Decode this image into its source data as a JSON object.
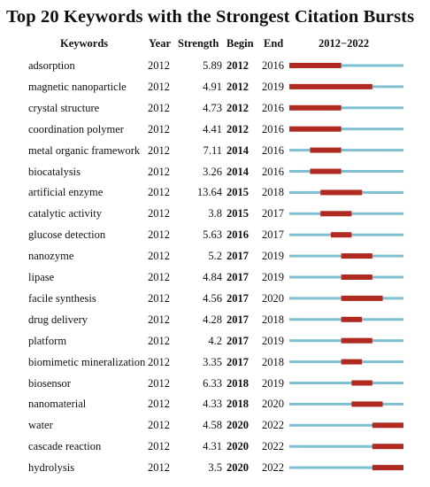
{
  "title": "Top 20 Keywords with the Strongest Citation Bursts",
  "headers": {
    "keywords": "Keywords",
    "year": "Year",
    "strength": "Strength",
    "begin": "Begin",
    "end": "End",
    "range": "2012−2022"
  },
  "colors": {
    "timeline": "#7ec0d2",
    "burst": "#b02a22"
  },
  "chart_data": {
    "type": "table",
    "title": "Top 20 Keywords with the Strongest Citation Bursts",
    "timeline_range": [
      2012,
      2022
    ],
    "columns": [
      "Keywords",
      "Year",
      "Strength",
      "Begin",
      "End"
    ],
    "rows": [
      {
        "keyword": "adsorption",
        "year": "2012",
        "strength": "5.89",
        "begin": "2012",
        "end": "2016"
      },
      {
        "keyword": "magnetic nanoparticle",
        "year": "2012",
        "strength": "4.91",
        "begin": "2012",
        "end": "2019"
      },
      {
        "keyword": "crystal structure",
        "year": "2012",
        "strength": "4.73",
        "begin": "2012",
        "end": "2016"
      },
      {
        "keyword": "coordination polymer",
        "year": "2012",
        "strength": "4.41",
        "begin": "2012",
        "end": "2016"
      },
      {
        "keyword": "metal organic framework",
        "year": "2012",
        "strength": "7.11",
        "begin": "2014",
        "end": "2016"
      },
      {
        "keyword": "biocatalysis",
        "year": "2012",
        "strength": "3.26",
        "begin": "2014",
        "end": "2016"
      },
      {
        "keyword": "artificial enzyme",
        "year": "2012",
        "strength": "13.64",
        "begin": "2015",
        "end": "2018"
      },
      {
        "keyword": "catalytic activity",
        "year": "2012",
        "strength": "3.8",
        "begin": "2015",
        "end": "2017"
      },
      {
        "keyword": "glucose detection",
        "year": "2012",
        "strength": "5.63",
        "begin": "2016",
        "end": "2017"
      },
      {
        "keyword": "nanozyme",
        "year": "2012",
        "strength": "5.2",
        "begin": "2017",
        "end": "2019"
      },
      {
        "keyword": "lipase",
        "year": "2012",
        "strength": "4.84",
        "begin": "2017",
        "end": "2019"
      },
      {
        "keyword": "facile synthesis",
        "year": "2012",
        "strength": "4.56",
        "begin": "2017",
        "end": "2020"
      },
      {
        "keyword": "drug delivery",
        "year": "2012",
        "strength": "4.28",
        "begin": "2017",
        "end": "2018"
      },
      {
        "keyword": "platform",
        "year": "2012",
        "strength": "4.2",
        "begin": "2017",
        "end": "2019"
      },
      {
        "keyword": "biomimetic mineralization",
        "year": "2012",
        "strength": "3.35",
        "begin": "2017",
        "end": "2018"
      },
      {
        "keyword": "biosensor",
        "year": "2012",
        "strength": "6.33",
        "begin": "2018",
        "end": "2019"
      },
      {
        "keyword": "nanomaterial",
        "year": "2012",
        "strength": "4.33",
        "begin": "2018",
        "end": "2020"
      },
      {
        "keyword": "water",
        "year": "2012",
        "strength": "4.58",
        "begin": "2020",
        "end": "2022"
      },
      {
        "keyword": "cascade reaction",
        "year": "2012",
        "strength": "4.31",
        "begin": "2020",
        "end": "2022"
      },
      {
        "keyword": "hydrolysis",
        "year": "2012",
        "strength": "3.5",
        "begin": "2020",
        "end": "2022"
      }
    ]
  }
}
